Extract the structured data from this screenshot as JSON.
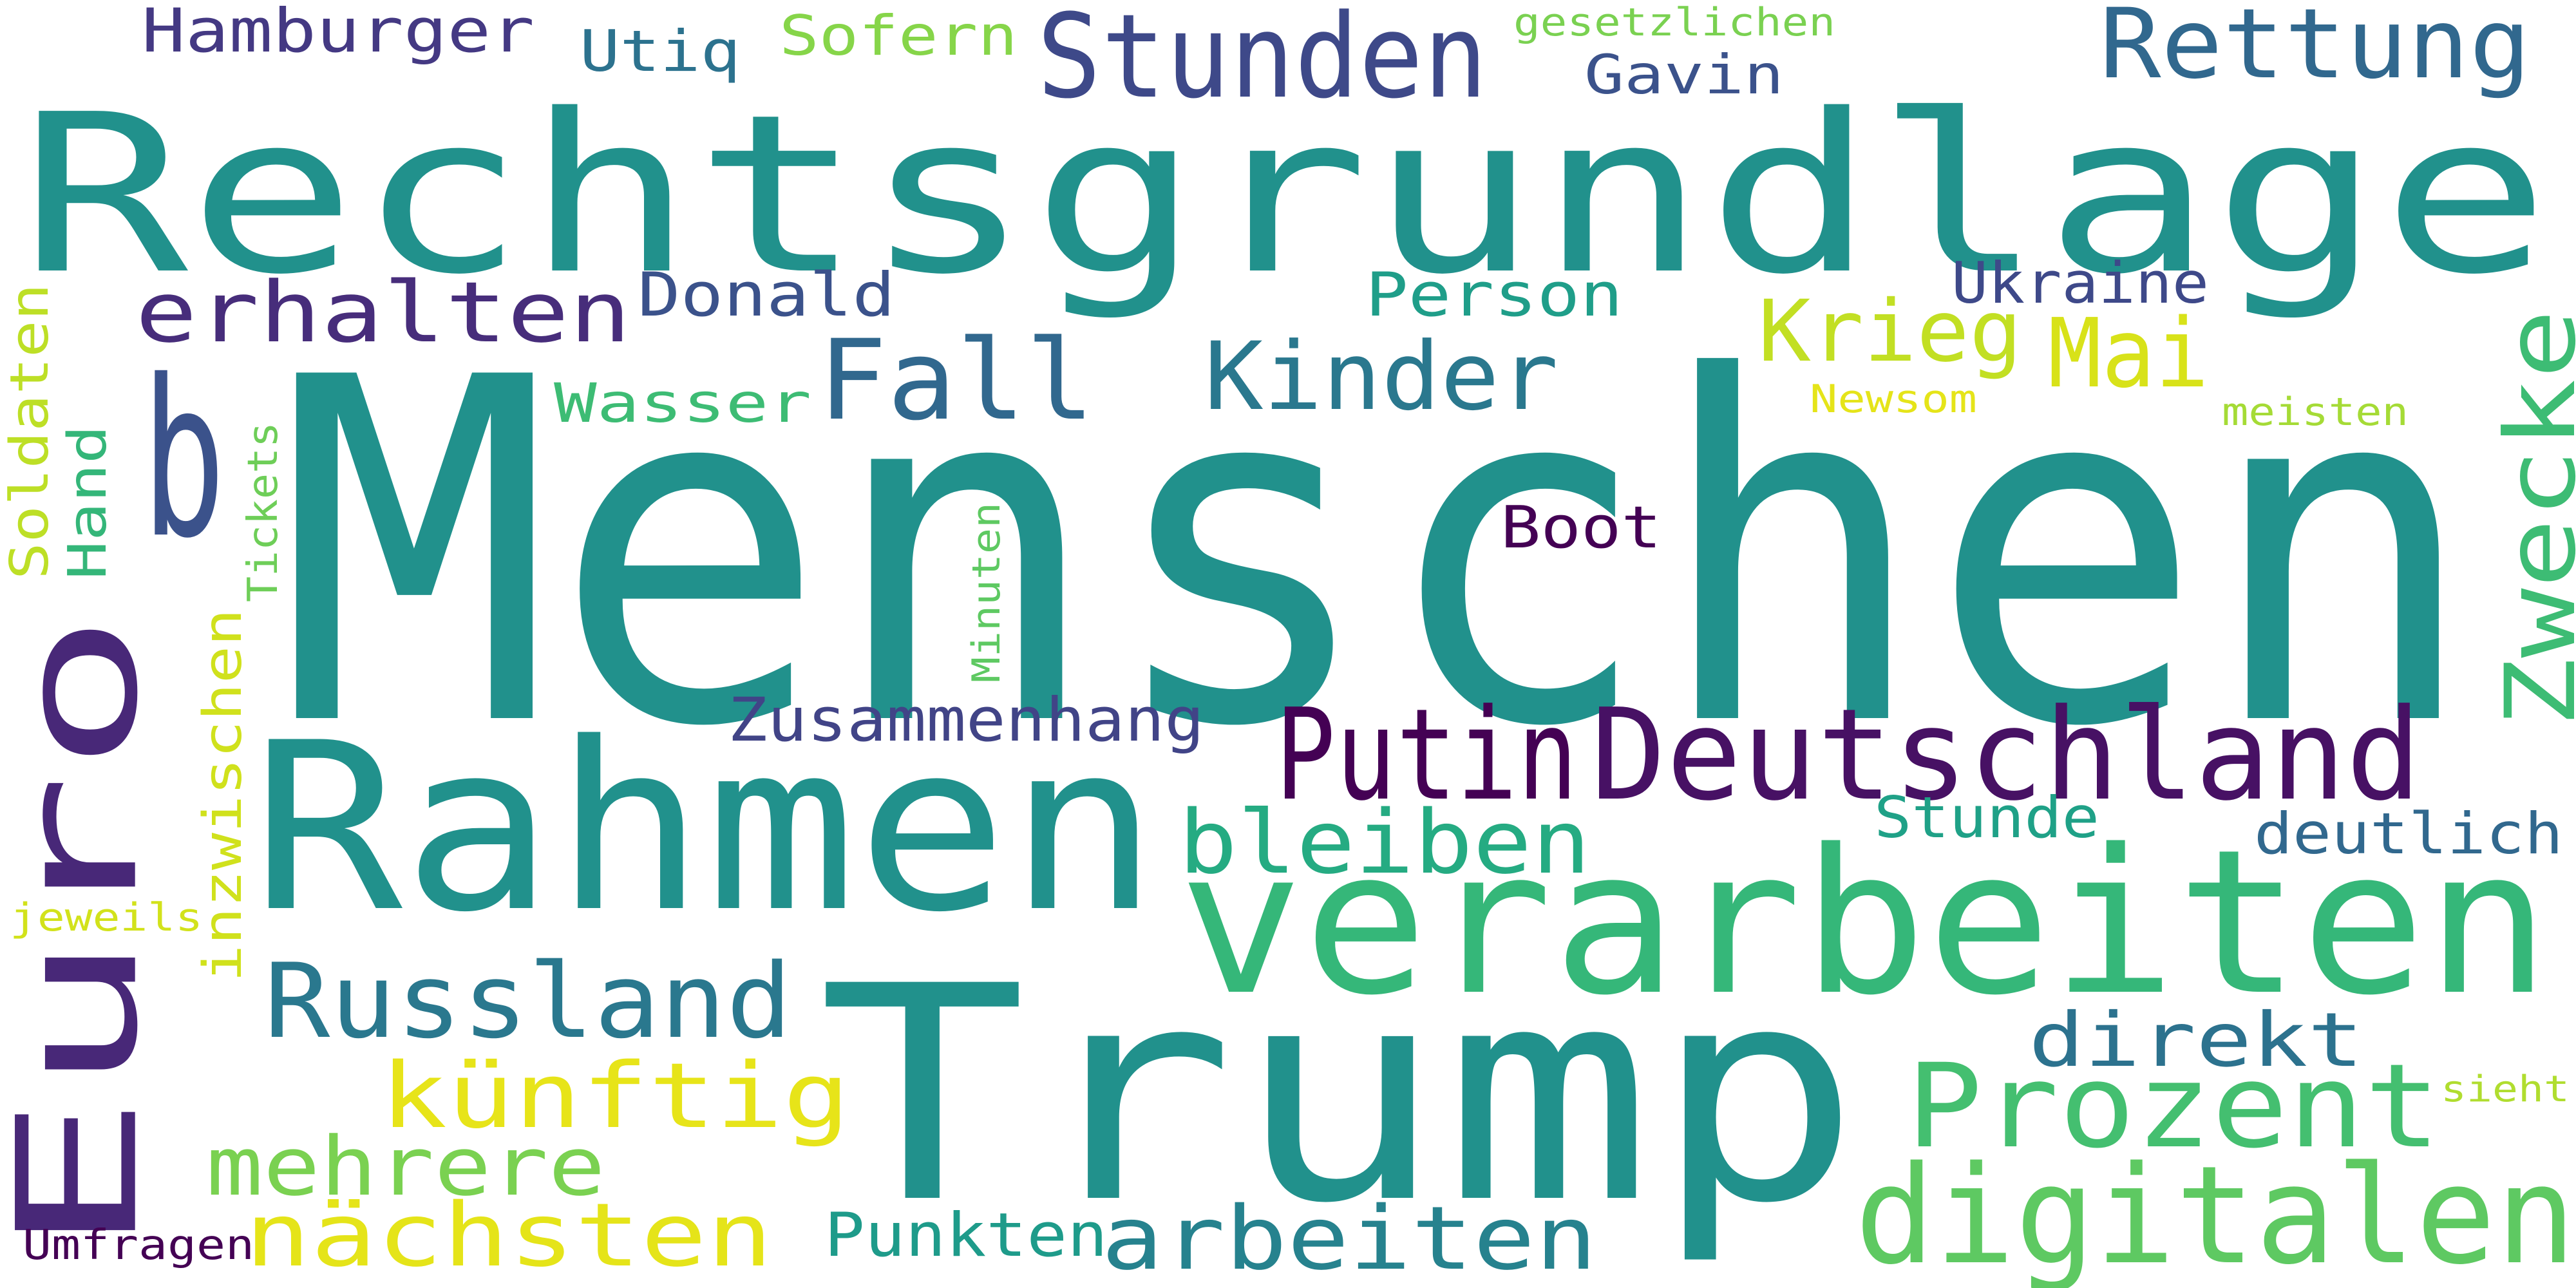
{
  "words": [
    {
      "text": "Menschen",
      "color": "#21918c"
    },
    {
      "text": "Rechtsgrundlage",
      "color": "#21918c"
    },
    {
      "text": "Trump",
      "color": "#21918c"
    },
    {
      "text": "Rahmen",
      "color": "#21918c"
    },
    {
      "text": "Euro",
      "color": "#482878"
    },
    {
      "text": "verarbeiten",
      "color": "#35b779"
    },
    {
      "text": "Deutschland",
      "color": "#471164"
    },
    {
      "text": "Zwecke",
      "color": "#3dbc74"
    },
    {
      "text": "Prozent",
      "color": "#44bf70"
    },
    {
      "text": "digitalen",
      "color": "#5ec962"
    },
    {
      "text": "b",
      "color": "#3b528b"
    },
    {
      "text": "Stunden",
      "color": "#3e4989"
    },
    {
      "text": "Rettung",
      "color": "#31688e"
    },
    {
      "text": "Putin",
      "color": "#440154"
    },
    {
      "text": "Russland",
      "color": "#2a788e"
    },
    {
      "text": "nächsten",
      "color": "#e5e419"
    },
    {
      "text": "arbeiten",
      "color": "#26828e"
    },
    {
      "text": "künftig",
      "color": "#e7e419"
    },
    {
      "text": "erhalten",
      "color": "#472d7b"
    },
    {
      "text": "Fall",
      "color": "#31688e"
    },
    {
      "text": "Kinder",
      "color": "#2a788e"
    },
    {
      "text": "bleiben",
      "color": "#25ab82"
    },
    {
      "text": "mehrere",
      "color": "#7ad151"
    },
    {
      "text": "direkt",
      "color": "#2c728e"
    },
    {
      "text": "Mai",
      "color": "#d8e219"
    },
    {
      "text": "Krieg",
      "color": "#c2df23"
    },
    {
      "text": "Hamburger",
      "color": "#443983"
    },
    {
      "text": "Donald",
      "color": "#3b528b"
    },
    {
      "text": "Person",
      "color": "#1f9e89"
    },
    {
      "text": "Zusammenhang",
      "color": "#414487"
    },
    {
      "text": "Punkten",
      "color": "#1e9b8a"
    },
    {
      "text": "deutlich",
      "color": "#31688e"
    },
    {
      "text": "Boot",
      "color": "#440154"
    },
    {
      "text": "Ukraine",
      "color": "#3e4989"
    },
    {
      "text": "Stunde",
      "color": "#1fa187"
    },
    {
      "text": "Gavin",
      "color": "#3b528b"
    },
    {
      "text": "Sofern",
      "color": "#86d549"
    },
    {
      "text": "Utiq",
      "color": "#2c728e"
    },
    {
      "text": "Wasser",
      "color": "#3dbc74"
    },
    {
      "text": "Soldaten",
      "color": "#bddf26"
    },
    {
      "text": "Hand",
      "color": "#34b679"
    },
    {
      "text": "inzwischen",
      "color": "#d0e11c"
    },
    {
      "text": "Umfragen",
      "color": "#440154"
    },
    {
      "text": "Tickets",
      "color": "#6ece58"
    },
    {
      "text": "Minuten",
      "color": "#5ec962"
    },
    {
      "text": "gesetzlichen",
      "color": "#7ad151"
    },
    {
      "text": "Newsom",
      "color": "#e5e419"
    },
    {
      "text": "meisten",
      "color": "#a5db36"
    },
    {
      "text": "jeweils",
      "color": "#d2e21b"
    },
    {
      "text": "sieht",
      "color": "#b0dd2f"
    }
  ]
}
